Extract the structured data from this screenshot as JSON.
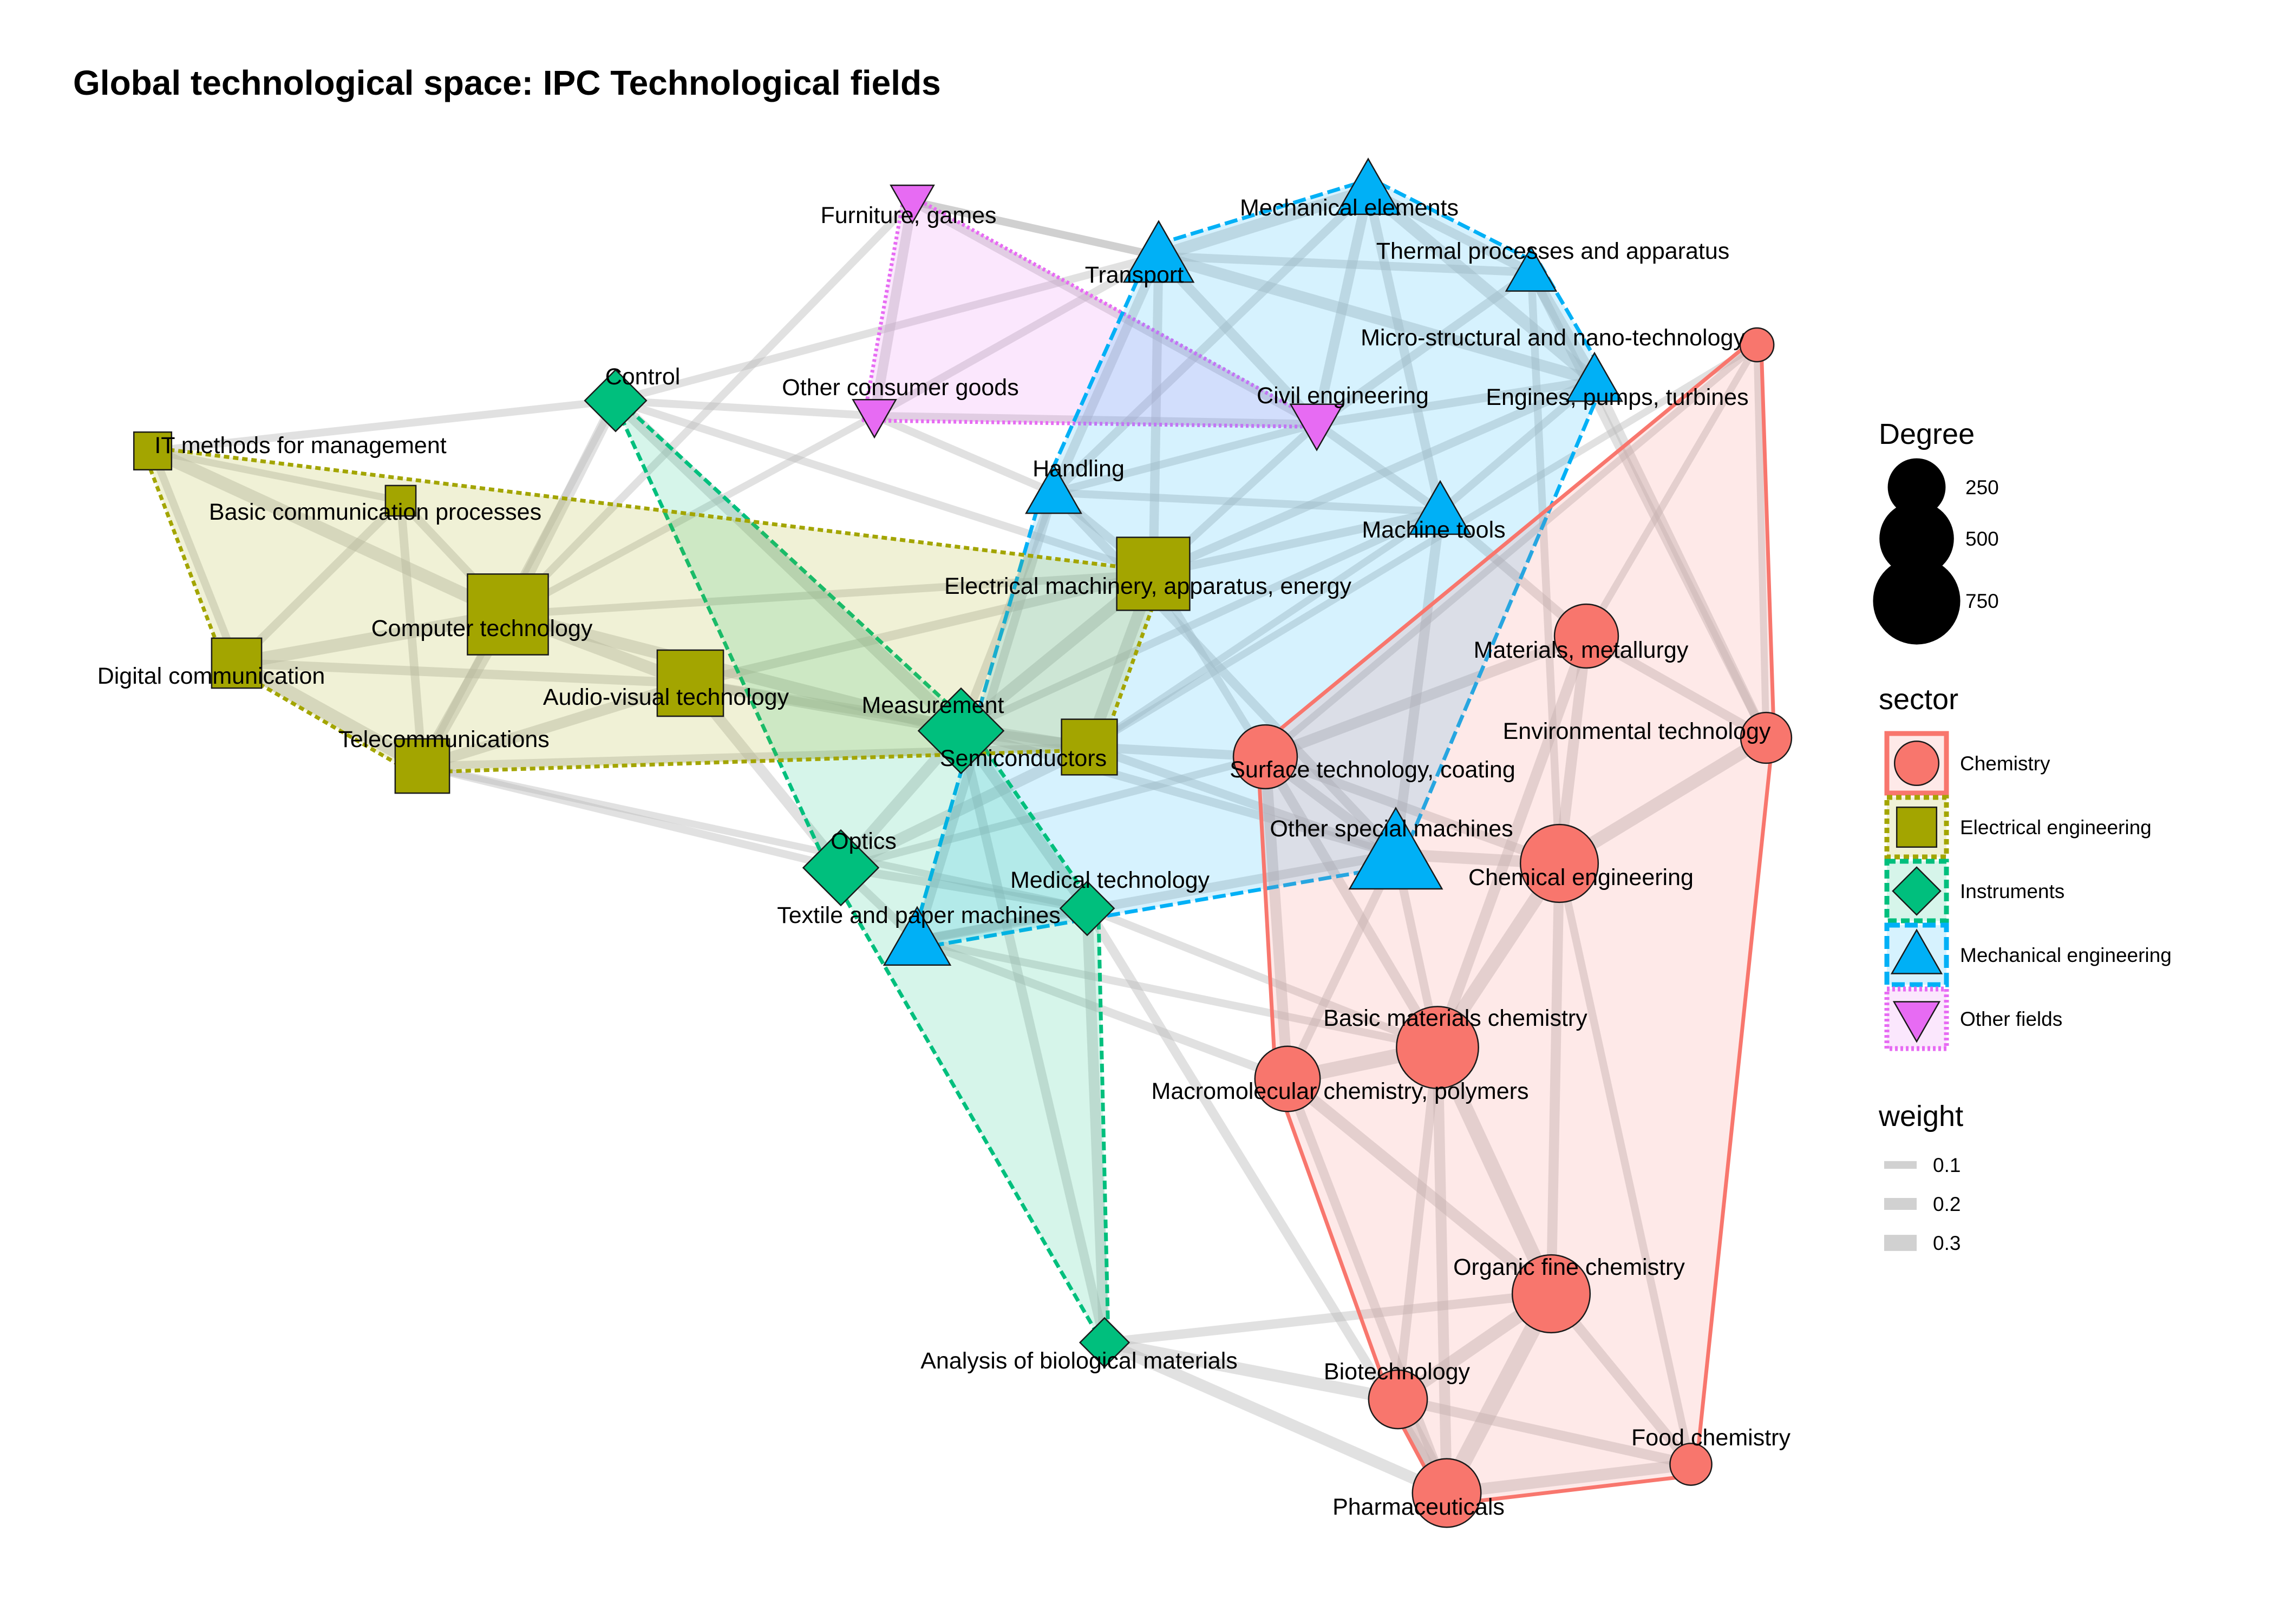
{
  "title": "Global technological space: IPC Technological fields",
  "legend": {
    "degree": {
      "title": "Degree",
      "items": [
        250,
        500,
        750
      ]
    },
    "sector": {
      "title": "sector",
      "items": [
        "Chemistry",
        "Electrical engineering",
        "Instruments",
        "Mechanical engineering",
        "Other fields"
      ]
    },
    "weight": {
      "title": "weight",
      "items": [
        0.1,
        0.2,
        0.3
      ]
    }
  },
  "sectors": {
    "Chemistry": {
      "color": "#F8766D",
      "shape": "circle",
      "dash": ""
    },
    "Electrical engineering": {
      "color": "#A3A500",
      "shape": "square",
      "dash": "10 7"
    },
    "Instruments": {
      "color": "#00BF7D",
      "shape": "diamond",
      "dash": "16 8"
    },
    "Mechanical engineering": {
      "color": "#00B0F6",
      "shape": "triangle",
      "dash": "24 9"
    },
    "Other fields": {
      "color": "#E76BF3",
      "shape": "triangle-down",
      "dash": "5 5"
    }
  },
  "nodes": [
    {
      "id": "Furniture, games",
      "sector": "Other fields",
      "degree": 90
    },
    {
      "id": "Other consumer goods",
      "sector": "Other fields",
      "degree": 90
    },
    {
      "id": "Civil engineering",
      "sector": "Other fields",
      "degree": 170
    },
    {
      "id": "Mechanical elements",
      "sector": "Mechanical engineering",
      "degree": 230
    },
    {
      "id": "Transport",
      "sector": "Mechanical engineering",
      "degree": 300
    },
    {
      "id": "Thermal processes and apparatus",
      "sector": "Mechanical engineering",
      "degree": 110
    },
    {
      "id": "Engines, pumps, turbines",
      "sector": "Mechanical engineering",
      "degree": 150
    },
    {
      "id": "Handling",
      "sector": "Mechanical engineering",
      "degree": 150
    },
    {
      "id": "Machine tools",
      "sector": "Mechanical engineering",
      "degree": 200
    },
    {
      "id": "Other special machines",
      "sector": "Mechanical engineering",
      "degree": 640
    },
    {
      "id": "Textile and paper machines",
      "sector": "Mechanical engineering",
      "degree": 260
    },
    {
      "id": "Micro-structural and nano-technology",
      "sector": "Chemistry",
      "degree": 40
    },
    {
      "id": "Materials, metallurgy",
      "sector": "Chemistry",
      "degree": 330
    },
    {
      "id": "Environmental technology",
      "sector": "Chemistry",
      "degree": 170
    },
    {
      "id": "Surface technology, coating",
      "sector": "Chemistry",
      "degree": 330
    },
    {
      "id": "Chemical engineering",
      "sector": "Chemistry",
      "degree": 560
    },
    {
      "id": "Basic materials chemistry",
      "sector": "Chemistry",
      "degree": 640
    },
    {
      "id": "Macromolecular chemistry, polymers",
      "sector": "Chemistry",
      "degree": 350
    },
    {
      "id": "Organic fine chemistry",
      "sector": "Chemistry",
      "degree": 560
    },
    {
      "id": "Biotechnology",
      "sector": "Chemistry",
      "degree": 260
    },
    {
      "id": "Food chemistry",
      "sector": "Chemistry",
      "degree": 90
    },
    {
      "id": "Pharmaceuticals",
      "sector": "Chemistry",
      "degree": 400
    },
    {
      "id": "Control",
      "sector": "Instruments",
      "degree": 240
    },
    {
      "id": "Measurement",
      "sector": "Instruments",
      "degree": 580
    },
    {
      "id": "Optics",
      "sector": "Instruments",
      "degree": 420
    },
    {
      "id": "Medical technology",
      "sector": "Instruments",
      "degree": 160
    },
    {
      "id": "Analysis of biological materials",
      "sector": "Instruments",
      "degree": 120
    },
    {
      "id": "IT methods for management",
      "sector": "Electrical engineering",
      "degree": 90
    },
    {
      "id": "Basic communication processes",
      "sector": "Electrical engineering",
      "degree": 40
    },
    {
      "id": "Computer technology",
      "sector": "Electrical engineering",
      "degree": 800
    },
    {
      "id": "Digital communication",
      "sector": "Electrical engineering",
      "degree": 220
    },
    {
      "id": "Telecommunications",
      "sector": "Electrical engineering",
      "degree": 280
    },
    {
      "id": "Audio-visual technology",
      "sector": "Electrical engineering",
      "degree": 480
    },
    {
      "id": "Electrical machinery, apparatus, energy",
      "sector": "Electrical engineering",
      "degree": 620
    },
    {
      "id": "Semiconductors",
      "sector": "Electrical engineering",
      "degree": 300
    }
  ],
  "edges": [
    [
      "Pharmaceuticals",
      "Organic fine chemistry",
      0.35
    ],
    [
      "Pharmaceuticals",
      "Biotechnology",
      0.3
    ],
    [
      "Pharmaceuticals",
      "Food chemistry",
      0.22
    ],
    [
      "Organic fine chemistry",
      "Biotechnology",
      0.26
    ],
    [
      "Organic fine chemistry",
      "Basic materials chemistry",
      0.3
    ],
    [
      "Organic fine chemistry",
      "Macromolecular chemistry, polymers",
      0.22
    ],
    [
      "Organic fine chemistry",
      "Food chemistry",
      0.18
    ],
    [
      "Organic fine chemistry",
      "Chemical engineering",
      0.18
    ],
    [
      "Basic materials chemistry",
      "Macromolecular chemistry, polymers",
      0.3
    ],
    [
      "Basic materials chemistry",
      "Chemical engineering",
      0.28
    ],
    [
      "Basic materials chemistry",
      "Pharmaceuticals",
      0.2
    ],
    [
      "Basic materials chemistry",
      "Biotechnology",
      0.16
    ],
    [
      "Basic materials chemistry",
      "Materials, metallurgy",
      0.2
    ],
    [
      "Basic materials chemistry",
      "Surface technology, coating",
      0.18
    ],
    [
      "Macromolecular chemistry, polymers",
      "Surface technology, coating",
      0.2
    ],
    [
      "Macromolecular chemistry, polymers",
      "Pharmaceuticals",
      0.16
    ],
    [
      "Chemical engineering",
      "Environmental technology",
      0.26
    ],
    [
      "Chemical engineering",
      "Other special machines",
      0.22
    ],
    [
      "Chemical engineering",
      "Materials, metallurgy",
      0.2
    ],
    [
      "Chemical engineering",
      "Surface technology, coating",
      0.16
    ],
    [
      "Environmental technology",
      "Engines, pumps, turbines",
      0.16
    ],
    [
      "Environmental technology",
      "Materials, metallurgy",
      0.16
    ],
    [
      "Environmental technology",
      "Micro-structural and nano-technology",
      0.1
    ],
    [
      "Materials, metallurgy",
      "Surface technology, coating",
      0.2
    ],
    [
      "Materials, metallurgy",
      "Machine tools",
      0.16
    ],
    [
      "Materials, metallurgy",
      "Micro-structural and nano-technology",
      0.1
    ],
    [
      "Surface technology, coating",
      "Semiconductors",
      0.16
    ],
    [
      "Surface technology, coating",
      "Other special machines",
      0.18
    ],
    [
      "Biotechnology",
      "Analysis of biological materials",
      0.24
    ],
    [
      "Biotechnology",
      "Food chemistry",
      0.18
    ],
    [
      "Analysis of biological materials",
      "Medical technology",
      0.2
    ],
    [
      "Analysis of biological materials",
      "Measurement",
      0.16
    ],
    [
      "Analysis of biological materials",
      "Pharmaceuticals",
      0.22
    ],
    [
      "Analysis of biological materials",
      "Organic fine chemistry",
      0.16
    ],
    [
      "Medical technology",
      "Measurement",
      0.2
    ],
    [
      "Medical technology",
      "Optics",
      0.14
    ],
    [
      "Medical technology",
      "Pharmaceuticals",
      0.16
    ],
    [
      "Medical technology",
      "Textile and paper machines",
      0.12
    ],
    [
      "Medical technology",
      "Basic materials chemistry",
      0.12
    ],
    [
      "Measurement",
      "Optics",
      0.22
    ],
    [
      "Measurement",
      "Control",
      0.24
    ],
    [
      "Measurement",
      "Semiconductors",
      0.22
    ],
    [
      "Measurement",
      "Electrical machinery, apparatus, energy",
      0.24
    ],
    [
      "Measurement",
      "Computer technology",
      0.24
    ],
    [
      "Measurement",
      "Audio-visual technology",
      0.18
    ],
    [
      "Measurement",
      "Handling",
      0.14
    ],
    [
      "Measurement",
      "Other special machines",
      0.14
    ],
    [
      "Measurement",
      "Machine tools",
      0.12
    ],
    [
      "Optics",
      "Semiconductors",
      0.22
    ],
    [
      "Optics",
      "Audio-visual technology",
      0.2
    ],
    [
      "Optics",
      "Textile and paper machines",
      0.14
    ],
    [
      "Optics",
      "Telecommunications",
      0.12
    ],
    [
      "Optics",
      "Surface technology, coating",
      0.12
    ],
    [
      "Control",
      "Computer technology",
      0.22
    ],
    [
      "Control",
      "Other consumer goods",
      0.12
    ],
    [
      "Control",
      "Transport",
      0.12
    ],
    [
      "Control",
      "IT methods for management",
      0.12
    ],
    [
      "Control",
      "Electrical machinery, apparatus, energy",
      0.12
    ],
    [
      "Control",
      "Telecommunications",
      0.1
    ],
    [
      "Computer technology",
      "IT methods for management",
      0.26
    ],
    [
      "Computer technology",
      "Digital communication",
      0.26
    ],
    [
      "Computer technology",
      "Telecommunications",
      0.24
    ],
    [
      "Computer technology",
      "Audio-visual technology",
      0.24
    ],
    [
      "Computer technology",
      "Basic communication processes",
      0.14
    ],
    [
      "Computer technology",
      "Electrical machinery, apparatus, energy",
      0.12
    ],
    [
      "Computer technology",
      "Other consumer goods",
      0.1
    ],
    [
      "Digital communication",
      "Telecommunications",
      0.28
    ],
    [
      "Digital communication",
      "Basic communication processes",
      0.14
    ],
    [
      "Digital communication",
      "IT methods for management",
      0.12
    ],
    [
      "Digital communication",
      "Audio-visual technology",
      0.16
    ],
    [
      "Telecommunications",
      "Audio-visual technology",
      0.2
    ],
    [
      "Telecommunications",
      "Basic communication processes",
      0.14
    ],
    [
      "Telecommunications",
      "Semiconductors",
      0.12
    ],
    [
      "Telecommunications",
      "Medical technology",
      0.1
    ],
    [
      "Audio-visual technology",
      "Semiconductors",
      0.18
    ],
    [
      "Audio-visual technology",
      "Electrical machinery, apparatus, energy",
      0.16
    ],
    [
      "Electrical machinery, apparatus, energy",
      "Semiconductors",
      0.22
    ],
    [
      "Electrical machinery, apparatus, energy",
      "Handling",
      0.14
    ],
    [
      "Electrical machinery, apparatus, energy",
      "Machine tools",
      0.14
    ],
    [
      "Electrical machinery, apparatus, energy",
      "Transport",
      0.16
    ],
    [
      "Electrical machinery, apparatus, energy",
      "Engines, pumps, turbines",
      0.14
    ],
    [
      "Electrical machinery, apparatus, energy",
      "Civil engineering",
      0.12
    ],
    [
      "Electrical machinery, apparatus, energy",
      "Surface technology, coating",
      0.12
    ],
    [
      "Semiconductors",
      "Other special machines",
      0.14
    ],
    [
      "Semiconductors",
      "Machine tools",
      0.1
    ],
    [
      "Transport",
      "Mechanical elements",
      0.24
    ],
    [
      "Transport",
      "Engines, pumps, turbines",
      0.22
    ],
    [
      "Transport",
      "Civil engineering",
      0.18
    ],
    [
      "Transport",
      "Handling",
      0.16
    ],
    [
      "Transport",
      "Thermal processes and apparatus",
      0.14
    ],
    [
      "Transport",
      "Furniture, games",
      0.12
    ],
    [
      "Mechanical elements",
      "Engines, pumps, turbines",
      0.24
    ],
    [
      "Mechanical elements",
      "Thermal processes and apparatus",
      0.16
    ],
    [
      "Mechanical elements",
      "Civil engineering",
      0.18
    ],
    [
      "Mechanical elements",
      "Handling",
      0.14
    ],
    [
      "Mechanical elements",
      "Machine tools",
      0.16
    ],
    [
      "Thermal processes and apparatus",
      "Engines, pumps, turbines",
      0.22
    ],
    [
      "Thermal processes and apparatus",
      "Civil engineering",
      0.14
    ],
    [
      "Thermal processes and apparatus",
      "Environmental technology",
      0.14
    ],
    [
      "Thermal processes and apparatus",
      "Chemical engineering",
      0.12
    ],
    [
      "Engines, pumps, turbines",
      "Civil engineering",
      0.14
    ],
    [
      "Engines, pumps, turbines",
      "Machine tools",
      0.12
    ],
    [
      "Civil engineering",
      "Furniture, games",
      0.14
    ],
    [
      "Civil engineering",
      "Machine tools",
      0.14
    ],
    [
      "Civil engineering",
      "Handling",
      0.12
    ],
    [
      "Civil engineering",
      "Other consumer goods",
      0.12
    ],
    [
      "Handling",
      "Other special machines",
      0.16
    ],
    [
      "Handling",
      "Textile and paper machines",
      0.14
    ],
    [
      "Handling",
      "Machine tools",
      0.12
    ],
    [
      "Machine tools",
      "Other special machines",
      0.18
    ],
    [
      "Other special machines",
      "Textile and paper machines",
      0.16
    ],
    [
      "Other special machines",
      "Basic materials chemistry",
      0.14
    ],
    [
      "Other special machines",
      "Macromolecular chemistry, polymers",
      0.14
    ],
    [
      "Textile and paper machines",
      "Macromolecular chemistry, polymers",
      0.14
    ],
    [
      "Textile and paper machines",
      "Basic materials chemistry",
      0.12
    ],
    [
      "Furniture, games",
      "Other consumer goods",
      0.18
    ],
    [
      "Furniture, games",
      "Transport",
      0.12
    ],
    [
      "Furniture, games",
      "Computer technology",
      0.12
    ],
    [
      "Other consumer goods",
      "Transport",
      0.12
    ],
    [
      "Other consumer goods",
      "Handling",
      0.12
    ],
    [
      "IT methods for management",
      "Basic communication processes",
      0.1
    ],
    [
      "Micro-structural and nano-technology",
      "Semiconductors",
      0.1
    ],
    [
      "Micro-structural and nano-technology",
      "Surface technology, coating",
      0.1
    ],
    [
      "Food chemistry",
      "Chemical engineering",
      0.12
    ]
  ],
  "hulls": [
    {
      "sector": "Other fields",
      "members": [
        "Furniture, games",
        "Other consumer goods",
        "Civil engineering"
      ]
    },
    {
      "sector": "Mechanical engineering",
      "members": [
        "Mechanical elements",
        "Transport",
        "Thermal processes and apparatus",
        "Engines, pumps, turbines",
        "Handling",
        "Machine tools",
        "Other special machines",
        "Textile and paper machines"
      ]
    },
    {
      "sector": "Chemistry",
      "members": [
        "Micro-structural and nano-technology",
        "Materials, metallurgy",
        "Environmental technology",
        "Surface technology, coating",
        "Chemical engineering",
        "Basic materials chemistry",
        "Macromolecular chemistry, polymers",
        "Organic fine chemistry",
        "Biotechnology",
        "Food chemistry",
        "Pharmaceuticals"
      ]
    },
    {
      "sector": "Instruments",
      "members": [
        "Control",
        "Measurement",
        "Optics",
        "Medical technology",
        "Analysis of biological materials"
      ]
    },
    {
      "sector": "Electrical engineering",
      "members": [
        "IT methods for management",
        "Basic communication processes",
        "Computer technology",
        "Digital communication",
        "Telecommunications",
        "Audio-visual technology",
        "Electrical machinery, apparatus, energy",
        "Semiconductors"
      ]
    }
  ]
}
